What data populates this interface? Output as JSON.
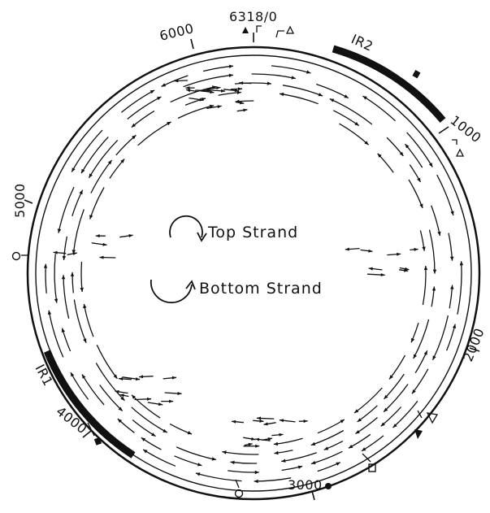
{
  "genome": {
    "total_bp": 6318,
    "origin_label": "6318/0",
    "colors": {
      "ink": "#111111",
      "background": "#ffffff"
    }
  },
  "position_labels": [
    {
      "id": "origin",
      "text": "6318/0"
    },
    {
      "id": "p1000",
      "text": "1000"
    },
    {
      "id": "p2000",
      "text": "2000"
    },
    {
      "id": "p3000",
      "text": "3000"
    },
    {
      "id": "p4000",
      "text": "4000"
    },
    {
      "id": "p5000",
      "text": "5000"
    },
    {
      "id": "p6000",
      "text": "6000"
    }
  ],
  "repeats": [
    {
      "id": "ir2",
      "label": "IR2"
    },
    {
      "id": "ir1",
      "label": "IR1"
    }
  ],
  "legend": {
    "top_strand": "Top Strand",
    "bottom_strand": "Bottom Strand"
  },
  "site_markers": [
    {
      "id": "m-filled-triangle-origin",
      "shape": "filled-triangle"
    },
    {
      "id": "m-open-triangle-origin",
      "shape": "open-triangle"
    },
    {
      "id": "m-filled-square-ir2",
      "shape": "filled-square"
    },
    {
      "id": "m-open-triangle-1000",
      "shape": "open-triangle"
    },
    {
      "id": "m-open-triangle-2000",
      "shape": "open-triangle"
    },
    {
      "id": "m-filled-triangle-2000",
      "shape": "filled-triangle"
    },
    {
      "id": "m-open-square-2500",
      "shape": "open-square"
    },
    {
      "id": "m-filled-circle-3000",
      "shape": "filled-circle"
    },
    {
      "id": "m-open-circle-3000",
      "shape": "open-circle"
    },
    {
      "id": "m-filled-square-4000",
      "shape": "filled-square"
    },
    {
      "id": "m-open-circle-5000",
      "shape": "open-circle"
    }
  ]
}
